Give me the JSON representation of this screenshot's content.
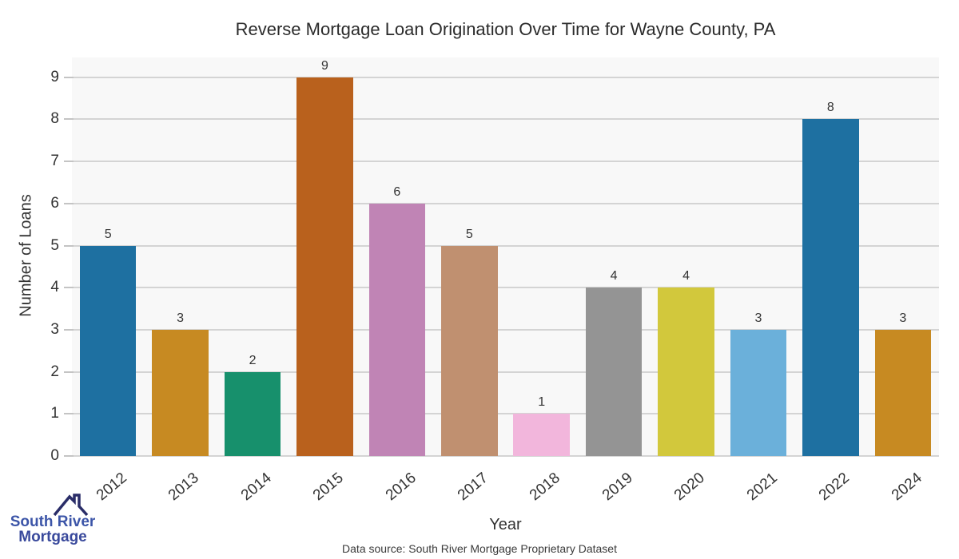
{
  "chart_data": {
    "type": "bar",
    "title": "Reverse Mortgage Loan Origination Over Time for Wayne County, PA",
    "xlabel": "Year",
    "ylabel": "Number of Loans",
    "source_note": "Data source: South River Mortgage Proprietary Dataset",
    "categories": [
      "2012",
      "2013",
      "2014",
      "2015",
      "2016",
      "2017",
      "2018",
      "2019",
      "2020",
      "2021",
      "2022",
      "2024"
    ],
    "values": [
      5,
      3,
      2,
      9,
      6,
      5,
      1,
      4,
      4,
      3,
      8,
      3
    ],
    "bar_colors": [
      "#1e70a1",
      "#c78a22",
      "#17906c",
      "#b9611d",
      "#c084b5",
      "#c09070",
      "#f2b6dc",
      "#949494",
      "#d2c83c",
      "#6bb0da",
      "#1e70a1",
      "#c78a22"
    ],
    "yticks": [
      0,
      1,
      2,
      3,
      4,
      5,
      6,
      7,
      8,
      9
    ],
    "ylim": [
      0,
      9.45
    ],
    "grid": "horizontal",
    "legend": "none",
    "value_labels_shown": true,
    "colors": {
      "plot_bg": "#f8f8f8",
      "gridline": "#d4d4d4",
      "tick": "#c4c4c4",
      "axis_text": "#333333",
      "title_text": "#2b2b2b"
    }
  },
  "logo": {
    "line1": "South River",
    "line2": "Mortgage",
    "text_color_line1": "#3c55a8",
    "text_color_line2": "#39499c",
    "roof_color": "#2a2d68"
  }
}
